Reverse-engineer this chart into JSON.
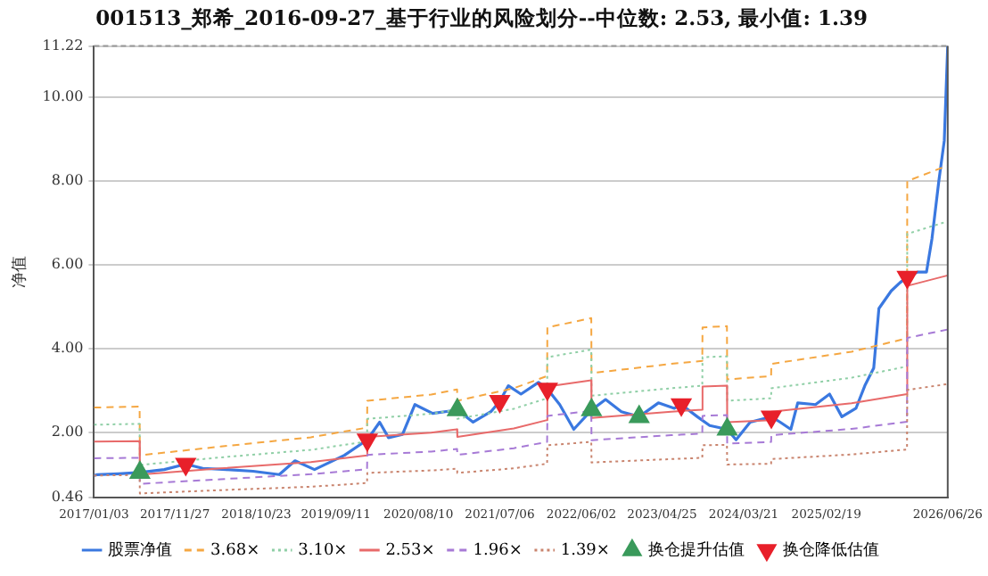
{
  "chart_data": {
    "type": "line",
    "title": "001513_郑希_2016-09-27_基于行业的风险划分--中位数: 2.53, 最小值: 1.39",
    "ylabel": "净值",
    "xlim": [
      "2017-01-03",
      "2026-06-26"
    ],
    "xticks": [
      {
        "value": "2017-01-03",
        "label": "2017/01/03"
      },
      {
        "value": "2017-11-27",
        "label": "2017/11/27"
      },
      {
        "value": "2018-10-23",
        "label": "2018/10/23"
      },
      {
        "value": "2019-09-11",
        "label": "2019/09/11"
      },
      {
        "value": "2020-08-10",
        "label": "2020/08/10"
      },
      {
        "value": "2021-07-06",
        "label": "2021/07/06"
      },
      {
        "value": "2022-06-02",
        "label": "2022/06/02"
      },
      {
        "value": "2023-04-25",
        "label": "2023/04/25"
      },
      {
        "value": "2024-03-21",
        "label": "2024/03/21"
      },
      {
        "value": "2025-02-19",
        "label": "2025/02/19"
      },
      {
        "value": "2026-06-26",
        "label": "2026/06/26"
      }
    ],
    "ylim": [
      0.46,
      11.22
    ],
    "yticks": [
      0.46,
      {
        "value": 2,
        "label": "2.00"
      },
      {
        "value": 4,
        "label": "4.00"
      },
      {
        "value": 6,
        "label": "6.00"
      },
      {
        "value": 8,
        "label": "8.00"
      },
      {
        "value": 10,
        "label": "10.00"
      },
      11.22
    ],
    "grid": "y",
    "legend": "bottom",
    "marker": "none",
    "series": [
      {
        "name": "股票净值",
        "color": "#3a78e0",
        "line_style": "solid",
        "x": [
          "2017-01-03",
          "2017-01-17",
          "2017-04-13",
          "2017-07-08",
          "2017-10-15",
          "2018-01-10",
          "2018-03-20",
          "2018-06-23",
          "2018-10-10",
          "2019-01-24",
          "2019-03-29",
          "2019-06-16",
          "2019-10-15",
          "2020-01-16",
          "2020-03-06",
          "2020-04-11",
          "2020-06-07",
          "2020-07-27",
          "2020-10-07",
          "2021-01-15",
          "2021-03-20",
          "2021-05-31",
          "2021-07-06",
          "2021-08-10",
          "2021-09-30",
          "2021-12-10",
          "2022-01-15",
          "2022-03-06",
          "2022-05-02",
          "2022-07-13",
          "2022-09-08",
          "2022-11-11",
          "2023-01-22",
          "2023-04-10",
          "2023-06-14",
          "2023-07-12",
          "2023-09-15",
          "2023-11-04",
          "2024-01-14",
          "2024-02-19",
          "2024-04-16",
          "2024-07-11",
          "2024-08-16",
          "2024-09-28",
          "2024-10-26",
          "2025-01-06",
          "2025-03-04",
          "2025-04-23",
          "2025-06-19",
          "2025-07-25",
          "2025-08-30",
          "2025-09-20",
          "2025-11-09",
          "2025-12-15",
          "2026-01-13",
          "2026-02-24",
          "2026-04-01",
          "2026-04-23",
          "2026-05-21",
          "2026-06-12",
          "2026-06-26"
        ],
        "values": [
          0.98,
          1.0,
          1.02,
          1.05,
          1.12,
          1.25,
          1.15,
          1.12,
          1.08,
          1.0,
          1.33,
          1.12,
          1.46,
          1.83,
          2.25,
          1.88,
          1.96,
          2.67,
          2.46,
          2.54,
          2.25,
          2.5,
          2.75,
          3.12,
          2.92,
          3.2,
          3.04,
          2.67,
          2.08,
          2.54,
          2.79,
          2.5,
          2.38,
          2.71,
          2.58,
          2.67,
          2.38,
          2.17,
          2.08,
          1.83,
          2.25,
          2.38,
          2.25,
          2.08,
          2.71,
          2.67,
          2.92,
          2.38,
          2.58,
          3.12,
          3.54,
          4.96,
          5.38,
          5.58,
          5.71,
          5.83,
          5.83,
          6.62,
          8.0,
          8.96,
          11.22
        ]
      },
      {
        "name": "3.68×",
        "color": "#f5a742",
        "line_style": "dashed",
        "x": [
          "2017-01-03",
          "2017-07-07",
          "2017-07-08",
          "2018-06-01",
          "2019-06-01",
          "2020-01-15",
          "2020-01-16",
          "2020-10-01",
          "2021-01-14",
          "2021-01-15",
          "2021-09-01",
          "2022-01-14",
          "2022-01-15",
          "2022-07-12",
          "2022-07-13",
          "2023-06-01",
          "2023-10-05",
          "2023-10-06",
          "2024-01-13",
          "2024-01-14",
          "2024-07-10",
          "2024-07-11",
          "2025-06-01",
          "2026-01-12",
          "2026-01-13",
          "2026-06-26"
        ],
        "values": [
          2.6,
          2.62,
          1.46,
          1.67,
          1.89,
          2.12,
          2.76,
          2.91,
          3.03,
          2.76,
          3.06,
          3.35,
          4.51,
          4.73,
          3.42,
          3.64,
          3.71,
          4.51,
          4.54,
          3.27,
          3.35,
          3.64,
          3.93,
          4.25,
          8.0,
          8.37
        ]
      },
      {
        "name": "3.10×",
        "color": "#8fcfa6",
        "line_style": "dotted",
        "x": [
          "2017-01-03",
          "2017-07-07",
          "2017-07-08",
          "2018-06-01",
          "2019-06-01",
          "2020-01-15",
          "2020-01-16",
          "2020-10-01",
          "2021-01-14",
          "2021-01-15",
          "2021-09-01",
          "2022-01-14",
          "2022-01-15",
          "2022-07-12",
          "2022-07-13",
          "2023-06-01",
          "2023-10-05",
          "2023-10-06",
          "2024-01-13",
          "2024-01-14",
          "2024-07-10",
          "2024-07-11",
          "2025-06-01",
          "2026-01-12",
          "2026-01-13",
          "2026-06-26"
        ],
        "values": [
          2.19,
          2.21,
          1.23,
          1.41,
          1.59,
          1.79,
          2.33,
          2.45,
          2.55,
          2.33,
          2.57,
          2.82,
          3.8,
          3.98,
          2.88,
          3.06,
          3.12,
          3.8,
          3.82,
          2.76,
          2.82,
          3.06,
          3.31,
          3.58,
          6.74,
          7.04
        ]
      },
      {
        "name": "2.53×",
        "color": "#e86a6a",
        "line_style": "solid",
        "x": [
          "2017-01-03",
          "2017-07-07",
          "2017-07-08",
          "2018-06-01",
          "2019-06-01",
          "2020-01-15",
          "2020-01-16",
          "2020-10-01",
          "2021-01-14",
          "2021-01-15",
          "2021-09-01",
          "2022-01-14",
          "2022-01-15",
          "2022-07-12",
          "2022-07-13",
          "2023-06-01",
          "2023-10-05",
          "2023-10-06",
          "2024-01-13",
          "2024-01-14",
          "2024-07-10",
          "2024-07-11",
          "2025-06-01",
          "2026-01-12",
          "2026-01-13",
          "2026-06-26"
        ],
        "values": [
          1.79,
          1.8,
          1.0,
          1.15,
          1.3,
          1.46,
          1.9,
          2.0,
          2.08,
          1.9,
          2.1,
          2.3,
          3.1,
          3.25,
          2.35,
          2.5,
          2.55,
          3.1,
          3.12,
          2.25,
          2.3,
          2.5,
          2.7,
          2.92,
          5.5,
          5.75
        ]
      },
      {
        "name": "1.96×",
        "color": "#a77ad6",
        "line_style": "dashed",
        "x": [
          "2017-01-03",
          "2017-07-07",
          "2017-07-08",
          "2018-06-01",
          "2019-06-01",
          "2020-01-15",
          "2020-01-16",
          "2020-10-01",
          "2021-01-14",
          "2021-01-15",
          "2021-09-01",
          "2022-01-14",
          "2022-01-15",
          "2022-07-12",
          "2022-07-13",
          "2023-06-01",
          "2023-10-05",
          "2023-10-06",
          "2024-01-13",
          "2024-01-14",
          "2024-07-10",
          "2024-07-11",
          "2025-06-01",
          "2026-01-12",
          "2026-01-13",
          "2026-06-26"
        ],
        "values": [
          1.39,
          1.4,
          0.78,
          0.89,
          1.01,
          1.13,
          1.47,
          1.55,
          1.61,
          1.47,
          1.63,
          1.78,
          2.4,
          2.52,
          1.82,
          1.94,
          1.98,
          2.4,
          2.42,
          1.74,
          1.78,
          1.94,
          2.09,
          2.26,
          4.26,
          4.46
        ]
      },
      {
        "name": "1.39×",
        "color": "#c9846e",
        "line_style": "dotted",
        "x": [
          "2017-01-03",
          "2017-07-07",
          "2017-07-08",
          "2018-06-01",
          "2019-06-01",
          "2020-01-15",
          "2020-01-16",
          "2020-10-01",
          "2021-01-14",
          "2021-01-15",
          "2021-09-01",
          "2022-01-14",
          "2022-01-15",
          "2022-07-12",
          "2022-07-13",
          "2023-06-01",
          "2023-10-05",
          "2023-10-06",
          "2024-01-13",
          "2024-01-14",
          "2024-07-10",
          "2024-07-11",
          "2025-06-01",
          "2026-01-12",
          "2026-01-13",
          "2026-06-26"
        ],
        "values": [
          0.98,
          0.99,
          0.55,
          0.63,
          0.71,
          0.8,
          1.04,
          1.1,
          1.14,
          1.04,
          1.15,
          1.26,
          1.7,
          1.78,
          1.29,
          1.37,
          1.4,
          1.7,
          1.71,
          1.24,
          1.26,
          1.37,
          1.48,
          1.6,
          3.02,
          3.16
        ]
      },
      {
        "name": "换仓提升估值",
        "type": "scatter",
        "marker": "triangle",
        "color": "#3a9a5b",
        "x": [
          "2017-07-08",
          "2021-01-15",
          "2022-07-13",
          "2023-01-22",
          "2024-01-14"
        ],
        "values": [
          1.05,
          2.54,
          2.54,
          2.38,
          2.08
        ]
      },
      {
        "name": "换仓降低估值",
        "type": "scatter",
        "marker": "triangle-down",
        "color": "#e8202a",
        "x": [
          "2018-01-10",
          "2020-01-16",
          "2021-07-06",
          "2022-01-15",
          "2023-07-12",
          "2024-07-11",
          "2026-01-13"
        ],
        "values": [
          1.25,
          1.83,
          2.75,
          3.04,
          2.67,
          2.38,
          5.71
        ]
      }
    ]
  }
}
